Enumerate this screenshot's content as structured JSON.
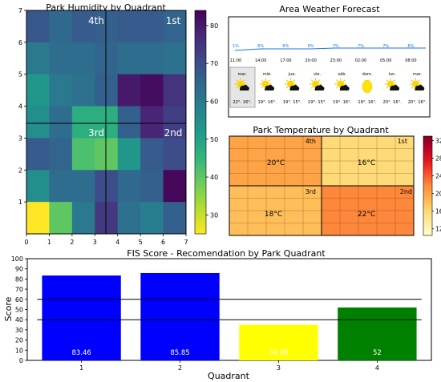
{
  "chart_data": [
    {
      "type": "heatmap",
      "title": "Park Humidity by Quadrant",
      "xlim": [
        0,
        7
      ],
      "ylim": [
        0,
        7
      ],
      "xticks": [
        "0",
        "1",
        "2",
        "3",
        "4",
        "5",
        "6",
        "7"
      ],
      "yticks": [
        "1",
        "2",
        "3",
        "4",
        "5",
        "6",
        "7"
      ],
      "rows_top_to_bottom": [
        [
          68,
          64,
          67,
          66,
          67,
          67,
          65
        ],
        [
          60,
          63,
          63,
          65,
          63,
          63,
          62
        ],
        [
          53,
          60,
          62,
          66,
          80,
          82,
          75
        ],
        [
          55,
          63,
          47,
          47,
          66,
          78,
          73
        ],
        [
          67,
          65,
          42,
          40,
          53,
          67,
          70
        ],
        [
          55,
          63,
          63,
          70,
          64,
          66,
          83
        ],
        [
          25,
          40,
          60,
          74,
          62,
          59,
          66
        ]
      ],
      "colorbar": {
        "min": 25,
        "max": 84,
        "ticks": [
          "30",
          "40",
          "50",
          "60",
          "70",
          "80"
        ]
      },
      "quadrant_labels": [
        "4th",
        "1st",
        "3rd",
        "2nd"
      ]
    },
    {
      "type": "table",
      "title": "Area Weather Forecast",
      "humidity": [
        "1%",
        "6%",
        "6%",
        "6%",
        "7%",
        "7%",
        "7%",
        "8%"
      ],
      "hours": [
        "11:00",
        "14:00",
        "17:00",
        "20:00",
        "23:00",
        "02:00",
        "05:00",
        "08:00"
      ],
      "days": [
        {
          "name": "mar.",
          "temps": "22°. 16°.",
          "icon": "partly-cloudy-icon",
          "selected": true
        },
        {
          "name": "mié.",
          "temps": "19°. 16°.",
          "icon": "partly-cloudy-icon"
        },
        {
          "name": "jue.",
          "temps": "19°. 15°.",
          "icon": "partly-cloudy-icon"
        },
        {
          "name": "vie.",
          "temps": "19°. 15°.",
          "icon": "partly-cloudy-icon"
        },
        {
          "name": "sáb.",
          "temps": "19°. 16°.",
          "icon": "partly-cloudy-icon"
        },
        {
          "name": "dom.",
          "temps": "19°. 16°.",
          "icon": "sun-icon"
        },
        {
          "name": "lun.",
          "temps": "20°. 16°.",
          "icon": "partly-cloudy-icon"
        },
        {
          "name": "mar.",
          "temps": "20°. 16°.",
          "icon": "partly-cloudy-icon"
        }
      ]
    },
    {
      "type": "heatmap",
      "title": "Park Temperature by Quadrant",
      "quadrants": [
        {
          "label": "4th",
          "value": 20,
          "text": "20°C"
        },
        {
          "label": "1st",
          "value": 16,
          "text": "16°C"
        },
        {
          "label": "3rd",
          "value": 18,
          "text": "18°C"
        },
        {
          "label": "2nd",
          "value": 22,
          "text": "22°C"
        }
      ],
      "colorbar": {
        "min": 10.5,
        "max": 33,
        "ticks": [
          "12",
          "16",
          "20",
          "24",
          "28",
          "32"
        ]
      }
    },
    {
      "type": "bar",
      "title": "FIS Score - Recomendation by Park Quadrant",
      "xlabel": "Quadrant",
      "ylabel": "Score",
      "categories": [
        "1",
        "2",
        "3",
        "4"
      ],
      "values": [
        83.46,
        85.85,
        34.98,
        52
      ],
      "value_labels": [
        "83.46",
        "85.85",
        "34.98",
        "52"
      ],
      "colors": [
        "#0000ff",
        "#0000ff",
        "#ffff00",
        "#008000"
      ],
      "ylim": [
        0,
        100
      ],
      "yticks": [
        "0",
        "10",
        "20",
        "30",
        "40",
        "50",
        "60",
        "70",
        "80",
        "90",
        "100"
      ],
      "reference_lines": [
        60,
        40
      ]
    }
  ],
  "colors": {
    "viridis": [
      "#fde725",
      "#b5de2b",
      "#6ece58",
      "#35b779",
      "#1f9e89",
      "#26828e",
      "#31688e",
      "#3e4989",
      "#482878",
      "#440154"
    ],
    "ylorrd": [
      "#ffffcc",
      "#ffeda0",
      "#fed976",
      "#feb24c",
      "#fd8d3c",
      "#fc4e2a",
      "#e31a1c",
      "#bd0026",
      "#800026"
    ]
  }
}
